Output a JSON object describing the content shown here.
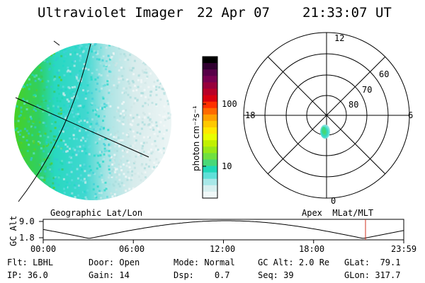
{
  "header": {
    "instrument": "Ultraviolet Imager",
    "date": "22 Apr 07",
    "time": "21:33:07 UT"
  },
  "colorbar": {
    "unit_label": "photon cm⁻²s⁻¹",
    "tick_labels": [
      "100",
      "10"
    ],
    "colors": [
      "#000000",
      "#300030",
      "#580048",
      "#780050",
      "#98003c",
      "#b80028",
      "#d80010",
      "#ff3000",
      "#ff6a00",
      "#ffa000",
      "#ffc800",
      "#ffe800",
      "#e8ff00",
      "#c0f000",
      "#98e818",
      "#70e040",
      "#48d878",
      "#20d8b8",
      "#60e0d8",
      "#a8e8e8",
      "#d8f0f0",
      "#f0f8f8"
    ]
  },
  "polar_plot": {
    "mlt_labels": {
      "top": "12",
      "left": "18",
      "right": "6",
      "bottom": "0"
    },
    "lat_labels": [
      "60",
      "70",
      "80"
    ]
  },
  "projection_labels": {
    "left": "Geographic Lat/Lon",
    "right": "Apex  MLat/MLT"
  },
  "orbit_plot": {
    "y_label": "GC Alt",
    "y_ticks": [
      "9.0",
      "1.8"
    ],
    "x_ticks": [
      "00:00",
      "06:00",
      "12:00",
      "18:00",
      "23:59"
    ],
    "current_time_fraction": 0.8939
  },
  "status": {
    "row1": [
      {
        "label": "Flt:",
        "value": "LBHL"
      },
      {
        "label": "Door:",
        "value": "Open"
      },
      {
        "label": "Mode:",
        "value": "Normal"
      },
      {
        "label": "GC Alt:",
        "value": "2.0 Re"
      },
      {
        "label": "GLat:",
        "value": "79.1"
      }
    ],
    "row2": [
      {
        "label": "IP:",
        "value": "36.0"
      },
      {
        "label": "Gain:",
        "value": "14"
      },
      {
        "label": "Dsp:",
        "value": "0.7"
      },
      {
        "label": "Seq:",
        "value": "39"
      },
      {
        "label": "GLon:",
        "value": "317.7"
      }
    ]
  }
}
